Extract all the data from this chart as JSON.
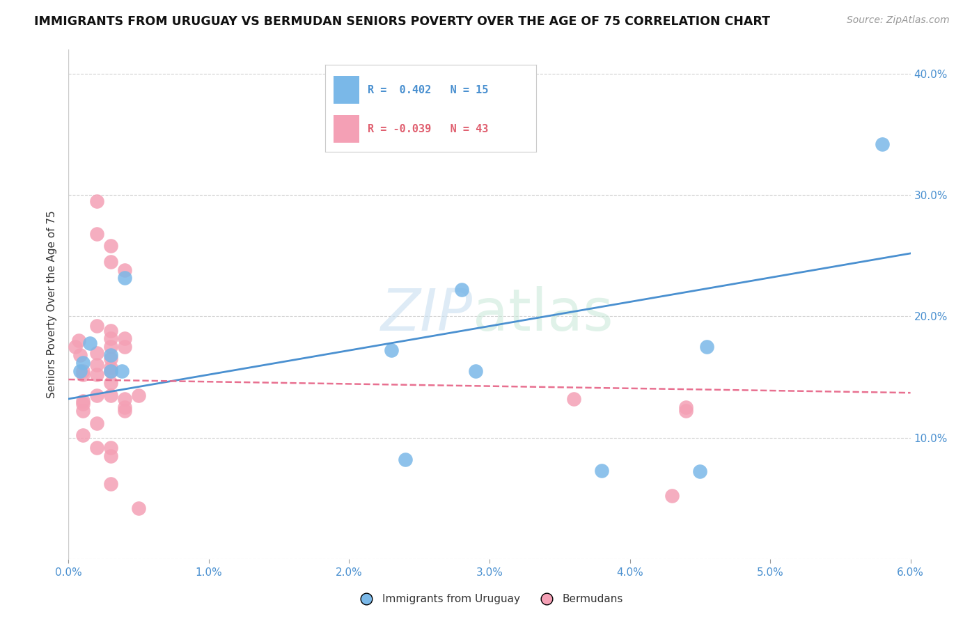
{
  "title": "IMMIGRANTS FROM URUGUAY VS BERMUDAN SENIORS POVERTY OVER THE AGE OF 75 CORRELATION CHART",
  "source": "Source: ZipAtlas.com",
  "ylabel": "Seniors Poverty Over the Age of 75",
  "xlim": [
    0.0,
    0.06
  ],
  "ylim": [
    0.0,
    0.42
  ],
  "yticks": [
    0.0,
    0.1,
    0.2,
    0.3,
    0.4
  ],
  "xticks": [
    0.0,
    0.01,
    0.02,
    0.03,
    0.04,
    0.05,
    0.06
  ],
  "xtick_labels": [
    "0.0%",
    "1.0%",
    "2.0%",
    "3.0%",
    "4.0%",
    "5.0%",
    "6.0%"
  ],
  "ytick_labels": [
    "",
    "10.0%",
    "20.0%",
    "30.0%",
    "40.0%"
  ],
  "blue_color": "#7ab8e8",
  "pink_color": "#f4a0b5",
  "blue_line_color": "#4a90d0",
  "pink_line_color": "#e87090",
  "legend_blue_R": "R =  0.402",
  "legend_blue_N": "N = 15",
  "legend_pink_R": "R = -0.039",
  "legend_pink_N": "N = 43",
  "blue_x": [
    0.0008,
    0.001,
    0.0015,
    0.003,
    0.003,
    0.004,
    0.0038,
    0.023,
    0.024,
    0.028,
    0.029,
    0.038,
    0.045,
    0.0455,
    0.058
  ],
  "blue_y": [
    0.155,
    0.162,
    0.178,
    0.155,
    0.168,
    0.232,
    0.155,
    0.172,
    0.082,
    0.222,
    0.155,
    0.073,
    0.072,
    0.175,
    0.342
  ],
  "pink_x": [
    0.0005,
    0.0007,
    0.0008,
    0.001,
    0.001,
    0.001,
    0.001,
    0.001,
    0.001,
    0.002,
    0.002,
    0.002,
    0.002,
    0.002,
    0.002,
    0.002,
    0.002,
    0.002,
    0.003,
    0.003,
    0.003,
    0.003,
    0.003,
    0.003,
    0.003,
    0.003,
    0.003,
    0.003,
    0.003,
    0.003,
    0.003,
    0.004,
    0.004,
    0.004,
    0.004,
    0.004,
    0.004,
    0.005,
    0.005,
    0.036,
    0.043,
    0.044,
    0.044
  ],
  "pink_y": [
    0.175,
    0.18,
    0.168,
    0.155,
    0.152,
    0.13,
    0.128,
    0.122,
    0.102,
    0.295,
    0.268,
    0.192,
    0.17,
    0.16,
    0.152,
    0.135,
    0.112,
    0.092,
    0.258,
    0.245,
    0.188,
    0.182,
    0.175,
    0.165,
    0.158,
    0.155,
    0.145,
    0.135,
    0.092,
    0.085,
    0.062,
    0.238,
    0.182,
    0.175,
    0.132,
    0.125,
    0.122,
    0.135,
    0.042,
    0.132,
    0.052,
    0.125,
    0.122
  ],
  "blue_trend_x": [
    0.0,
    0.06
  ],
  "blue_trend_y": [
    0.132,
    0.252
  ],
  "pink_trend_x": [
    0.0,
    0.06
  ],
  "pink_trend_y": [
    0.148,
    0.137
  ]
}
